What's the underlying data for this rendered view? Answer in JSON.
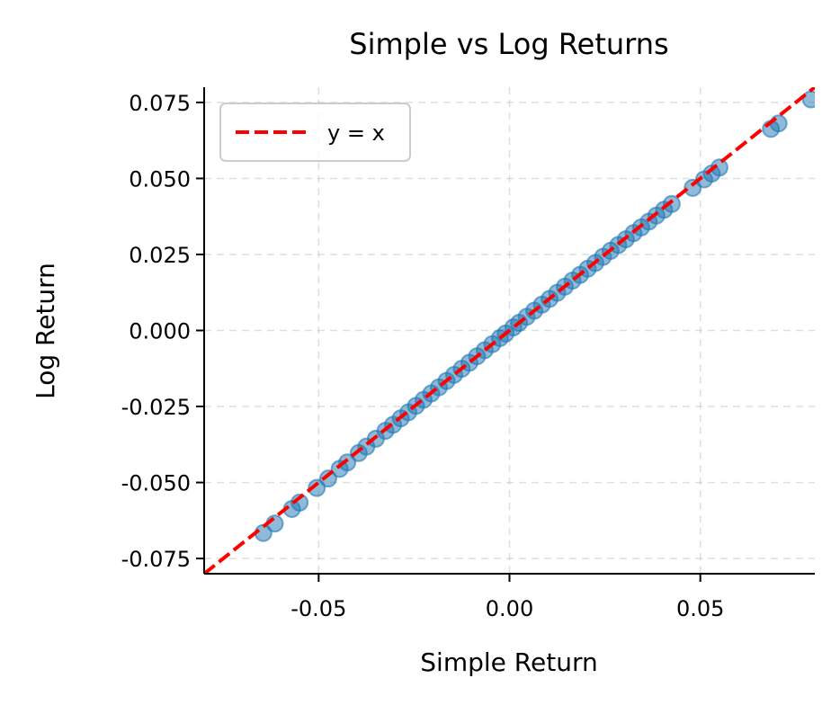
{
  "chart_data": {
    "type": "scatter",
    "title": "Simple vs Log Returns",
    "xlabel": "Simple Return",
    "ylabel": "Log Return",
    "xlim": [
      -0.08,
      0.08
    ],
    "ylim": [
      -0.08,
      0.08
    ],
    "xticks": [
      -0.05,
      0.0,
      0.05
    ],
    "xtick_labels": [
      "-0.05",
      "0.00",
      "0.05"
    ],
    "yticks": [
      -0.075,
      -0.05,
      -0.025,
      0.0,
      0.025,
      0.05,
      0.075
    ],
    "ytick_labels": [
      "-0.075",
      "-0.050",
      "-0.025",
      "0.000",
      "0.025",
      "0.050",
      "0.075"
    ],
    "grid": true,
    "legend_position": "top-left",
    "series": [
      {
        "kind": "points",
        "color": "#1f77b4",
        "x": [
          -0.0645,
          -0.0615,
          -0.057,
          -0.055,
          -0.0505,
          -0.0475,
          -0.0445,
          -0.0425,
          -0.0395,
          -0.0375,
          -0.035,
          -0.0325,
          -0.0305,
          -0.0285,
          -0.0265,
          -0.0245,
          -0.0225,
          -0.0205,
          -0.0185,
          -0.0165,
          -0.0145,
          -0.0125,
          -0.0105,
          -0.0085,
          -0.0065,
          -0.0045,
          -0.0025,
          -0.001,
          0.001,
          0.0025,
          0.0045,
          0.0065,
          0.0085,
          0.0105,
          0.0125,
          0.0145,
          0.0165,
          0.0185,
          0.0205,
          0.0225,
          0.0245,
          0.0265,
          0.0285,
          0.0305,
          0.0325,
          0.0345,
          0.0365,
          0.0385,
          0.0405,
          0.0425,
          0.048,
          0.051,
          0.053,
          0.055,
          0.0685,
          0.0705,
          0.079
        ],
        "y": [
          -0.0666,
          -0.0635,
          -0.0587,
          -0.0566,
          -0.0518,
          -0.0487,
          -0.0455,
          -0.0434,
          -0.0403,
          -0.0382,
          -0.0356,
          -0.033,
          -0.031,
          -0.0289,
          -0.0269,
          -0.0248,
          -0.0228,
          -0.0207,
          -0.0187,
          -0.0166,
          -0.0146,
          -0.0126,
          -0.0106,
          -0.0085,
          -0.0065,
          -0.0045,
          -0.0025,
          -0.001,
          0.001,
          0.0025,
          0.0045,
          0.0065,
          0.0085,
          0.0104,
          0.0124,
          0.0144,
          0.0164,
          0.0183,
          0.0203,
          0.0222,
          0.0242,
          0.0262,
          0.0281,
          0.03,
          0.032,
          0.0339,
          0.0358,
          0.0378,
          0.0397,
          0.0416,
          0.0469,
          0.0497,
          0.0516,
          0.0536,
          0.0663,
          0.0681,
          0.076
        ]
      },
      {
        "name": "y = x",
        "kind": "line",
        "color": "#ff0000",
        "dash": "dashed",
        "x": [
          -0.08,
          0.08
        ],
        "y": [
          -0.08,
          0.08
        ]
      }
    ]
  }
}
